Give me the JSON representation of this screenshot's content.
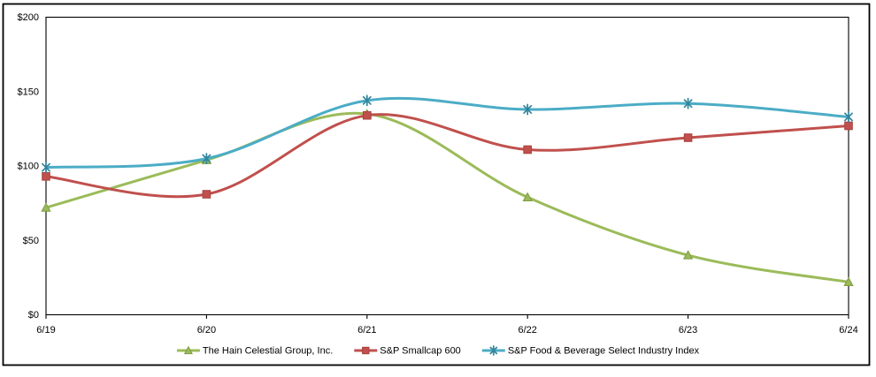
{
  "chart_data": {
    "type": "line",
    "title": "",
    "xlabel": "",
    "ylabel": "",
    "categories": [
      "6/19",
      "6/20",
      "6/21",
      "6/22",
      "6/23",
      "6/24"
    ],
    "y_axis": {
      "tick_values": [
        0,
        50,
        100,
        150,
        200
      ],
      "tick_labels": [
        "$0",
        "$50",
        "$100",
        "$150",
        "$200"
      ],
      "ylim": [
        0,
        200
      ]
    },
    "grid": false,
    "line_style": "smoothed",
    "legend_position": "bottom-center",
    "frame_color": "#000000",
    "background_color": "#ffffff",
    "series": [
      {
        "name": "The Hain Celestial Group, Inc.",
        "color": "#9BBB59",
        "marker_edge_color": "#7E9B44",
        "marker": "triangle",
        "values": [
          72,
          104,
          135,
          79,
          40,
          22
        ]
      },
      {
        "name": "S&P Smallcap 600",
        "color": "#C0504D",
        "marker_edge_color": "#A8423F",
        "marker": "square",
        "values": [
          93,
          81,
          134,
          111,
          119,
          127
        ]
      },
      {
        "name": "S&P Food & Beverage Select Industry Index",
        "color": "#4BACC6",
        "marker_edge_color": "#31859B",
        "marker": "asterisk",
        "values": [
          99,
          105,
          144,
          138,
          142,
          133
        ]
      }
    ]
  }
}
